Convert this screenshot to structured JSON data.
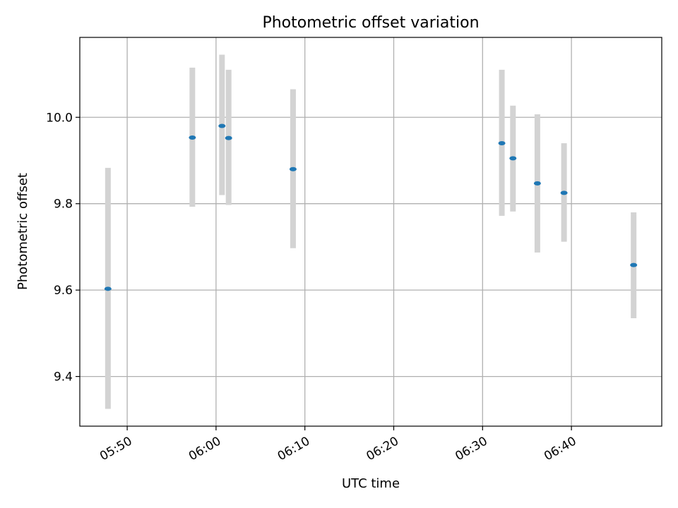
{
  "chart_data": {
    "type": "scatter",
    "title": "Photometric offset variation",
    "xlabel": "UTC time",
    "ylabel": "Photometric offset",
    "x_ticks": [
      "05:50",
      "06:00",
      "06:10",
      "06:20",
      "06:30",
      "06:40"
    ],
    "y_ticks": [
      "9.4",
      "9.6",
      "9.8",
      "10.0"
    ],
    "xlim": [
      "05:44:40",
      "06:50:10"
    ],
    "ylim": [
      9.285,
      10.185
    ],
    "grid": true,
    "points": [
      {
        "x": "05:47:50",
        "y": 9.603,
        "err_low": 9.325,
        "err_high": 9.883
      },
      {
        "x": "05:57:20",
        "y": 9.953,
        "err_low": 9.793,
        "err_high": 10.115
      },
      {
        "x": "06:00:40",
        "y": 9.98,
        "err_low": 9.82,
        "err_high": 10.145
      },
      {
        "x": "06:01:25",
        "y": 9.952,
        "err_low": 9.797,
        "err_high": 10.11
      },
      {
        "x": "06:08:40",
        "y": 9.88,
        "err_low": 9.697,
        "err_high": 10.065
      },
      {
        "x": "06:32:10",
        "y": 9.94,
        "err_low": 9.772,
        "err_high": 10.11
      },
      {
        "x": "06:33:25",
        "y": 9.905,
        "err_low": 9.782,
        "err_high": 10.027
      },
      {
        "x": "06:36:10",
        "y": 9.847,
        "err_low": 9.687,
        "err_high": 10.007
      },
      {
        "x": "06:39:10",
        "y": 9.825,
        "err_low": 9.712,
        "err_high": 9.94
      },
      {
        "x": "06:47:00",
        "y": 9.658,
        "err_low": 9.535,
        "err_high": 9.78
      }
    ],
    "colors": {
      "point": "#1f77b4",
      "errorbar": "#d3d3d3",
      "grid": "#b0b0b0"
    }
  }
}
